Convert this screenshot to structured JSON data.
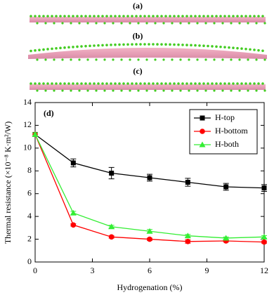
{
  "panel_labels": [
    "(a)",
    "(b)",
    "(c)"
  ],
  "chart_data": {
    "type": "line",
    "panel_label": "(d)",
    "x_label": "Hydrogenation (%)",
    "y_label": "Thermal resistance (×10⁻⁸ K·m²/W)",
    "x": [
      0,
      2,
      4,
      6,
      8,
      10,
      12
    ],
    "series": [
      {
        "name": "H-top",
        "color": "#000000",
        "marker": "square",
        "values": [
          11.2,
          8.7,
          7.8,
          7.4,
          7.0,
          6.6,
          6.5
        ],
        "errors": [
          0.15,
          0.35,
          0.5,
          0.3,
          0.35,
          0.3,
          0.3
        ]
      },
      {
        "name": "H-bottom",
        "color": "#ff0000",
        "marker": "circle",
        "values": [
          11.2,
          3.25,
          2.2,
          2.0,
          1.8,
          1.85,
          1.75
        ],
        "errors": [
          0.15,
          0.1,
          0.1,
          0.1,
          0.15,
          0.1,
          0.1
        ]
      },
      {
        "name": "H-both",
        "color": "#33ee33",
        "marker": "triangle",
        "values": [
          11.2,
          4.3,
          3.1,
          2.7,
          2.3,
          2.1,
          2.2
        ],
        "errors": [
          0.15,
          0.15,
          0.12,
          0.15,
          0.12,
          0.1,
          0.12
        ]
      }
    ],
    "xlim": [
      0,
      12
    ],
    "xticks": [
      0,
      3,
      6,
      9,
      12
    ],
    "ylim": [
      0,
      14
    ],
    "yticks": [
      0,
      2,
      4,
      6,
      8,
      10,
      12,
      14
    ],
    "legend": "upper-right"
  }
}
